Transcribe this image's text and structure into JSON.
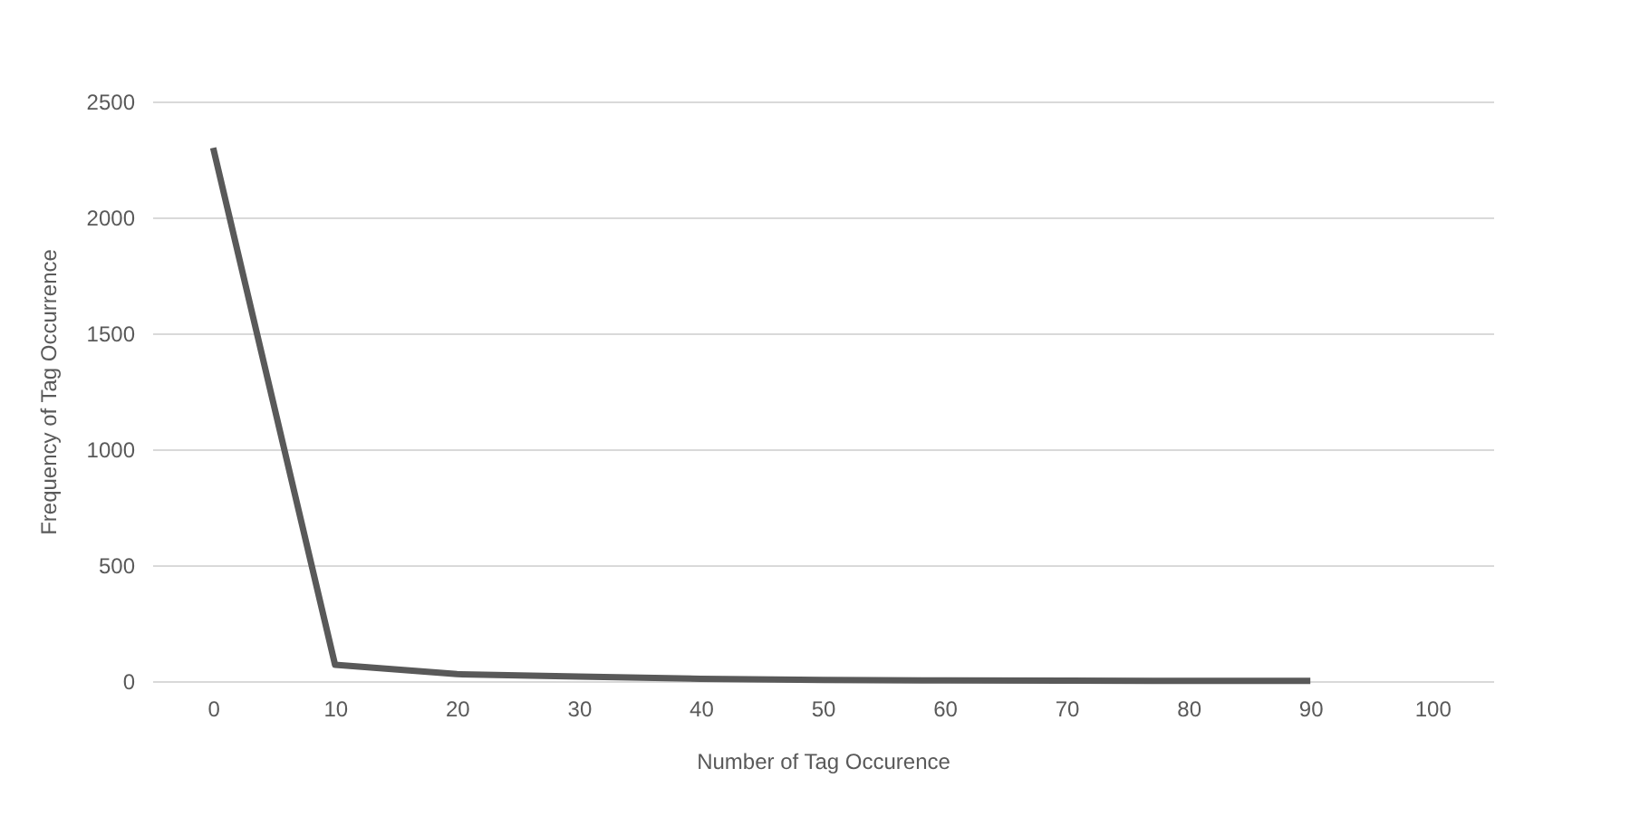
{
  "chart_data": {
    "type": "line",
    "xlabel": "Number  of Tag Occurence",
    "ylabel": "Frequency of Tag Occurrence",
    "categories": [
      "0",
      "10",
      "20",
      "30",
      "40",
      "50",
      "60",
      "70",
      "80",
      "90",
      "100"
    ],
    "series": [
      {
        "color": "#595959",
        "values": [
          2300,
          70,
          30,
          20,
          10,
          5,
          3,
          2,
          1,
          1,
          null
        ]
      }
    ],
    "ylim": [
      0,
      2500
    ],
    "yticks": [
      0,
      500,
      1000,
      1500,
      2000,
      2500
    ],
    "grid": "y",
    "marker": "none",
    "line_style": "solid"
  }
}
